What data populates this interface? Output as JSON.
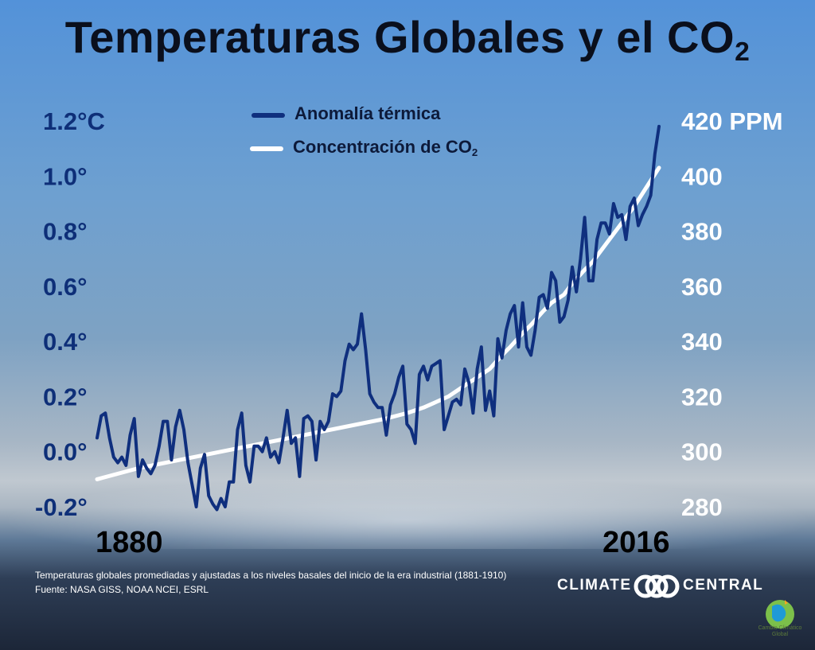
{
  "title": {
    "main": "Temperaturas Globales y el CO",
    "subscript": "2"
  },
  "legend": {
    "temp_label": "Anomalía térmica",
    "co2_label": "Concentración de CO",
    "co2_subscript": "2"
  },
  "caption": {
    "line1": "Temperaturas globales promediadas y ajustadas a los niveles basales del inicio de la era industrial (1881-1910)",
    "line2": "Fuente: NASA GISS, NOAA NCEI, ESRL"
  },
  "brand": {
    "left": "CLIMATE",
    "right": "CENTRAL"
  },
  "badge": {
    "line1": "Cambio Climático",
    "line2": "Global"
  },
  "colors": {
    "temp_line": "#0f2f7e",
    "co2_line": "#ffffff",
    "left_ticks": "#0e2f78",
    "right_ticks": "#ffffff"
  },
  "chart_data": {
    "type": "line",
    "title": "Temperaturas Globales y el CO2",
    "x_label_start": "1880",
    "x_label_end": "2016",
    "xlim": [
      1880,
      2016
    ],
    "left_axis": {
      "label": "Anomalía térmica (°C)",
      "ylim": [
        -0.2,
        1.2
      ],
      "ticks": [
        {
          "value": 1.2,
          "label": "1.2°C"
        },
        {
          "value": 1.0,
          "label": "1.0°"
        },
        {
          "value": 0.8,
          "label": "0.8°"
        },
        {
          "value": 0.6,
          "label": "0.6°"
        },
        {
          "value": 0.4,
          "label": "0.4°"
        },
        {
          "value": 0.2,
          "label": "0.2°"
        },
        {
          "value": 0.0,
          "label": "0.0°"
        },
        {
          "value": -0.2,
          "label": "-0.2°"
        }
      ]
    },
    "right_axis": {
      "label": "PPM",
      "ylim": [
        280,
        420
      ],
      "ticks": [
        {
          "value": 420,
          "label": "420 PPM"
        },
        {
          "value": 400,
          "label": "400"
        },
        {
          "value": 380,
          "label": "380"
        },
        {
          "value": 360,
          "label": "360"
        },
        {
          "value": 340,
          "label": "340"
        },
        {
          "value": 320,
          "label": "320"
        },
        {
          "value": 300,
          "label": "300"
        },
        {
          "value": 280,
          "label": "280"
        }
      ]
    },
    "series": [
      {
        "name": "Anomalía térmica",
        "axis": "left",
        "x": [
          1880,
          1881,
          1882,
          1883,
          1884,
          1885,
          1886,
          1887,
          1888,
          1889,
          1890,
          1891,
          1892,
          1893,
          1894,
          1895,
          1896,
          1897,
          1898,
          1899,
          1900,
          1901,
          1902,
          1903,
          1904,
          1905,
          1906,
          1907,
          1908,
          1909,
          1910,
          1911,
          1912,
          1913,
          1914,
          1915,
          1916,
          1917,
          1918,
          1919,
          1920,
          1921,
          1922,
          1923,
          1924,
          1925,
          1926,
          1927,
          1928,
          1929,
          1930,
          1931,
          1932,
          1933,
          1934,
          1935,
          1936,
          1937,
          1938,
          1939,
          1940,
          1941,
          1942,
          1943,
          1944,
          1945,
          1946,
          1947,
          1948,
          1949,
          1950,
          1951,
          1952,
          1953,
          1954,
          1955,
          1956,
          1957,
          1958,
          1959,
          1960,
          1961,
          1962,
          1963,
          1964,
          1965,
          1966,
          1967,
          1968,
          1969,
          1970,
          1971,
          1972,
          1973,
          1974,
          1975,
          1976,
          1977,
          1978,
          1979,
          1980,
          1981,
          1982,
          1983,
          1984,
          1985,
          1986,
          1987,
          1988,
          1989,
          1990,
          1991,
          1992,
          1993,
          1994,
          1995,
          1996,
          1997,
          1998,
          1999,
          2000,
          2001,
          2002,
          2003,
          2004,
          2005,
          2006,
          2007,
          2008,
          2009,
          2010,
          2011,
          2012,
          2013,
          2014,
          2015,
          2016
        ],
        "values": [
          0.05,
          0.13,
          0.14,
          0.05,
          -0.02,
          -0.04,
          -0.02,
          -0.05,
          0.06,
          0.12,
          -0.09,
          -0.03,
          -0.06,
          -0.08,
          -0.05,
          0.02,
          0.11,
          0.11,
          -0.03,
          0.09,
          0.15,
          0.08,
          -0.04,
          -0.12,
          -0.2,
          -0.06,
          -0.01,
          -0.16,
          -0.19,
          -0.21,
          -0.17,
          -0.2,
          -0.11,
          -0.11,
          0.08,
          0.14,
          -0.05,
          -0.11,
          0.02,
          0.02,
          0.0,
          0.05,
          -0.02,
          0.0,
          -0.04,
          0.05,
          0.15,
          0.03,
          0.05,
          -0.09,
          0.12,
          0.13,
          0.11,
          -0.03,
          0.11,
          0.08,
          0.11,
          0.21,
          0.2,
          0.22,
          0.33,
          0.39,
          0.37,
          0.39,
          0.5,
          0.37,
          0.21,
          0.18,
          0.16,
          0.16,
          0.06,
          0.17,
          0.21,
          0.27,
          0.31,
          0.1,
          0.08,
          0.03,
          0.28,
          0.31,
          0.26,
          0.31,
          0.32,
          0.33,
          0.08,
          0.13,
          0.18,
          0.19,
          0.17,
          0.3,
          0.25,
          0.14,
          0.3,
          0.38,
          0.15,
          0.22,
          0.13,
          0.41,
          0.34,
          0.44,
          0.5,
          0.53,
          0.38,
          0.54,
          0.38,
          0.35,
          0.44,
          0.56,
          0.57,
          0.52,
          0.65,
          0.62,
          0.47,
          0.49,
          0.55,
          0.67,
          0.58,
          0.7,
          0.85,
          0.62,
          0.62,
          0.77,
          0.83,
          0.83,
          0.79,
          0.9,
          0.85,
          0.86,
          0.77,
          0.89,
          0.92,
          0.82,
          0.86,
          0.89,
          0.93,
          1.08,
          1.18
        ]
      },
      {
        "name": "Concentración de CO2",
        "axis": "right",
        "x": [
          1880,
          1890,
          1900,
          1910,
          1920,
          1930,
          1940,
          1950,
          1955,
          1959,
          1962,
          1965,
          1968,
          1970,
          1972,
          1975,
          1978,
          1980,
          1983,
          1985,
          1988,
          1990,
          1993,
          1995,
          1998,
          2000,
          2003,
          2005,
          2008,
          2010,
          2013,
          2016
        ],
        "values": [
          290,
          294,
          297,
          300,
          303,
          306,
          309,
          312,
          314,
          316,
          318,
          320,
          323,
          325,
          327,
          330,
          335,
          338,
          343,
          346,
          351,
          354,
          357,
          361,
          366,
          369,
          375,
          379,
          385,
          389,
          396,
          403
        ]
      }
    ]
  }
}
